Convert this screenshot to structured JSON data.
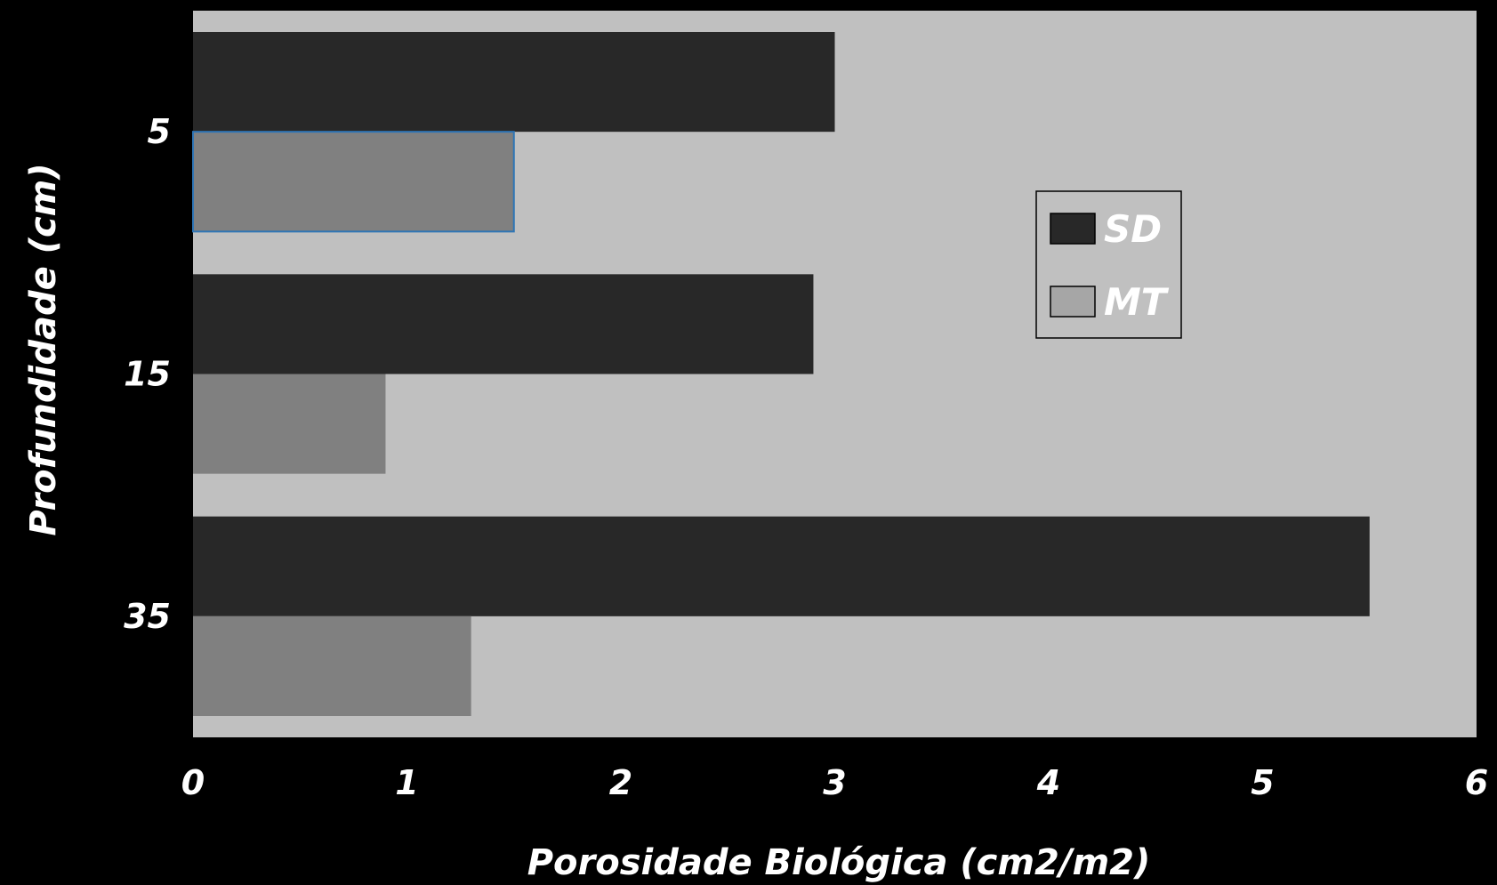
{
  "chart_data": {
    "type": "bar",
    "orientation": "horizontal",
    "categories": [
      "5",
      "15",
      "35"
    ],
    "series": [
      {
        "name": "SD",
        "values": [
          3.0,
          2.9,
          5.5
        ],
        "color": "#282828"
      },
      {
        "name": "MT",
        "values": [
          1.5,
          0.9,
          1.3
        ],
        "color": "#808080"
      }
    ],
    "xlabel": "Porosidade Biológica (cm2/m2)",
    "ylabel": "Profundidade (cm)",
    "xlim": [
      0,
      6
    ],
    "xticks": [
      "0",
      "1",
      "2",
      "3",
      "4",
      "5",
      "6"
    ],
    "grid": false,
    "legend_position": "right",
    "colors": {
      "background": "#000000",
      "plot_area": "#c0c0c0",
      "text": "#ffffff",
      "legend_mt_swatch": "#a6a6a6",
      "highlight_outline": "#2e75b6"
    }
  }
}
